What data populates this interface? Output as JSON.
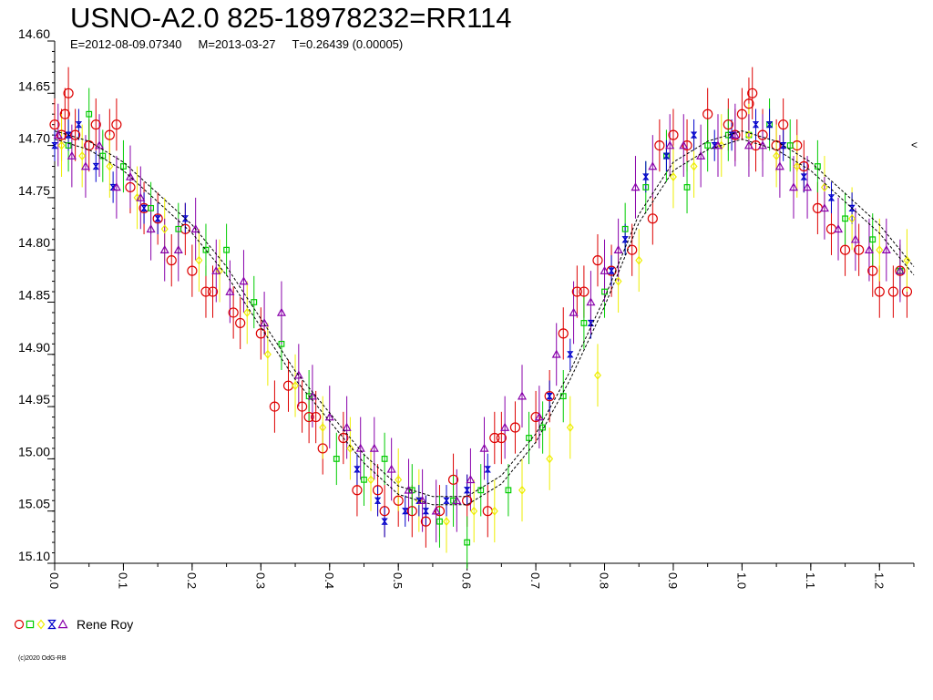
{
  "title": "USNO-A2.0 825-18978232=RR114",
  "subtitle": {
    "epoch": "E=2012-08-09.07340",
    "max": "M=2013-03-27",
    "period": "T=0.26439 (0.00005)"
  },
  "legend": {
    "label": "Rene Roy",
    "symbols": [
      "circle",
      "square",
      "diamond",
      "star",
      "triangle"
    ]
  },
  "credit": "(c)2020 OdG-RB",
  "edge_marker": "<",
  "colors": {
    "circle": "#dd0000",
    "square": "#00cc00",
    "diamond": "#eeee00",
    "star": "#0000cc",
    "triangle": "#8800aa",
    "fit": "#000000"
  },
  "chart_data": {
    "type": "scatter",
    "title": "USNO-A2.0 825-18978232=RR114",
    "xlabel": "",
    "ylabel": "",
    "xlim": [
      0.0,
      1.25
    ],
    "ylim": [
      15.1,
      14.6
    ],
    "y_inverted": true,
    "x_ticks": [
      "0.0",
      "0.1",
      "0.2",
      "0.3",
      "0.4",
      "0.5",
      "0.6",
      "0.7",
      "0.8",
      "0.9",
      "1.0",
      "1.1",
      "1.2"
    ],
    "y_ticks": [
      "14.60",
      "14.65",
      "14.70",
      "14.75",
      "14.80",
      "14.85",
      "14.90",
      "14.95",
      "15.00",
      "15.05",
      "15.10"
    ],
    "grid": false,
    "legend_position": "bottom-left",
    "fit_curve": {
      "x": [
        0.0,
        0.05,
        0.1,
        0.15,
        0.2,
        0.25,
        0.3,
        0.35,
        0.4,
        0.45,
        0.5,
        0.55,
        0.6,
        0.65,
        0.7,
        0.75,
        0.8,
        0.85,
        0.9,
        0.95,
        1.0,
        1.05,
        1.1,
        1.15,
        1.2,
        1.25
      ],
      "y": [
        14.69,
        14.7,
        14.72,
        14.75,
        14.78,
        14.82,
        14.87,
        14.92,
        14.96,
        15.0,
        15.03,
        15.04,
        15.04,
        15.02,
        14.98,
        14.92,
        14.85,
        14.77,
        14.72,
        14.7,
        14.69,
        14.7,
        14.72,
        14.75,
        14.78,
        14.82
      ]
    },
    "series": [
      {
        "name": "Rene Roy",
        "symbol": "circle",
        "x": [
          0.0,
          0.01,
          0.015,
          0.02,
          0.03,
          0.05,
          0.06,
          0.08,
          0.09,
          0.11,
          0.13,
          0.15,
          0.17,
          0.19,
          0.2,
          0.22,
          0.23,
          0.26,
          0.27,
          0.3,
          0.32,
          0.34,
          0.36,
          0.37,
          0.38,
          0.39,
          0.42,
          0.44,
          0.47,
          0.48,
          0.5,
          0.52,
          0.54,
          0.56,
          0.58,
          0.6,
          0.63,
          0.64,
          0.65,
          0.67,
          0.7,
          0.72,
          0.74,
          0.76,
          0.77,
          0.79,
          0.81,
          0.84,
          0.87,
          0.88,
          0.9,
          0.92,
          0.95,
          0.98,
          0.99,
          1.0,
          1.01,
          1.015,
          1.02,
          1.03,
          1.05,
          1.06,
          1.08,
          1.09,
          1.11,
          1.13,
          1.15,
          1.17,
          1.19,
          1.2,
          1.22,
          1.23,
          1.24
        ],
        "y": [
          14.68,
          14.69,
          14.67,
          14.65,
          14.69,
          14.7,
          14.68,
          14.69,
          14.68,
          14.74,
          14.76,
          14.77,
          14.81,
          14.78,
          14.82,
          14.84,
          14.84,
          14.86,
          14.87,
          14.88,
          14.95,
          14.93,
          14.95,
          14.96,
          14.96,
          14.99,
          14.98,
          15.03,
          15.03,
          15.05,
          15.04,
          15.05,
          15.06,
          15.05,
          15.02,
          15.04,
          15.05,
          14.98,
          14.98,
          14.97,
          14.96,
          14.94,
          14.88,
          14.84,
          14.84,
          14.81,
          14.82,
          14.8,
          14.77,
          14.7,
          14.69,
          14.7,
          14.67,
          14.68,
          14.69,
          14.67,
          14.66,
          14.65,
          14.7,
          14.69,
          14.7,
          14.68,
          14.7,
          14.72,
          14.76,
          14.78,
          14.8,
          14.8,
          14.82,
          14.84,
          14.84,
          14.82,
          14.84
        ]
      },
      {
        "name": "Rene Roy",
        "symbol": "square",
        "x": [
          0.02,
          0.05,
          0.07,
          0.1,
          0.14,
          0.18,
          0.22,
          0.25,
          0.29,
          0.33,
          0.37,
          0.41,
          0.45,
          0.48,
          0.52,
          0.56,
          0.58,
          0.6,
          0.62,
          0.66,
          0.69,
          0.71,
          0.74,
          0.77,
          0.8,
          0.83,
          0.86,
          0.89,
          0.92,
          0.95,
          0.98,
          1.01,
          1.04,
          1.07,
          1.11,
          1.15,
          1.19,
          1.23
        ],
        "y": [
          14.7,
          14.67,
          14.71,
          14.72,
          14.76,
          14.78,
          14.8,
          14.8,
          14.85,
          14.89,
          14.94,
          15.0,
          15.02,
          15.0,
          15.03,
          15.06,
          15.04,
          15.08,
          15.03,
          15.03,
          14.98,
          14.97,
          14.94,
          14.87,
          14.84,
          14.78,
          14.74,
          14.71,
          14.74,
          14.7,
          14.69,
          14.69,
          14.68,
          14.7,
          14.72,
          14.77,
          14.79,
          14.82
        ]
      },
      {
        "name": "Rene Roy",
        "symbol": "diamond",
        "x": [
          0.01,
          0.04,
          0.08,
          0.12,
          0.16,
          0.21,
          0.24,
          0.28,
          0.31,
          0.35,
          0.39,
          0.43,
          0.46,
          0.5,
          0.53,
          0.57,
          0.61,
          0.64,
          0.68,
          0.72,
          0.75,
          0.79,
          0.82,
          0.85,
          0.9,
          0.93,
          0.97,
          1.01,
          1.05,
          1.08,
          1.12,
          1.16,
          1.2,
          1.24
        ],
        "y": [
          14.7,
          14.71,
          14.72,
          14.75,
          14.78,
          14.81,
          14.82,
          14.86,
          14.9,
          14.93,
          14.97,
          14.99,
          15.02,
          15.02,
          15.04,
          15.06,
          15.05,
          15.05,
          15.03,
          15.0,
          14.97,
          14.92,
          14.83,
          14.81,
          14.73,
          14.72,
          14.7,
          14.69,
          14.71,
          14.72,
          14.74,
          14.77,
          14.8,
          14.81
        ]
      },
      {
        "name": "Rene Roy",
        "symbol": "star",
        "x": [
          0.0,
          0.02,
          0.035,
          0.06,
          0.085,
          0.13,
          0.15,
          0.19,
          0.44,
          0.47,
          0.48,
          0.51,
          0.53,
          0.54,
          0.57,
          0.6,
          0.63,
          0.72,
          0.75,
          0.78,
          0.81,
          0.83,
          0.86,
          0.89,
          0.93,
          0.96,
          0.985,
          1.02,
          1.04,
          1.06,
          1.09,
          1.13,
          1.16
        ],
        "y": [
          14.7,
          14.69,
          14.68,
          14.72,
          14.74,
          14.76,
          14.77,
          14.77,
          15.01,
          15.04,
          15.06,
          15.05,
          15.04,
          15.05,
          15.04,
          15.03,
          15.01,
          14.94,
          14.9,
          14.87,
          14.82,
          14.79,
          14.73,
          14.71,
          14.69,
          14.7,
          14.69,
          14.68,
          14.68,
          14.7,
          14.73,
          14.75,
          14.76
        ]
      },
      {
        "name": "Rene Roy",
        "symbol": "triangle",
        "x": [
          0.005,
          0.025,
          0.045,
          0.065,
          0.09,
          0.11,
          0.125,
          0.14,
          0.16,
          0.18,
          0.205,
          0.235,
          0.255,
          0.275,
          0.305,
          0.33,
          0.355,
          0.375,
          0.4,
          0.425,
          0.445,
          0.465,
          0.49,
          0.515,
          0.535,
          0.555,
          0.585,
          0.605,
          0.625,
          0.655,
          0.68,
          0.705,
          0.73,
          0.755,
          0.78,
          0.8,
          0.82,
          0.845,
          0.87,
          0.895,
          0.915,
          0.94,
          0.965,
          0.99,
          1.01,
          1.03,
          1.055,
          1.075,
          1.095,
          1.12,
          1.14,
          1.165,
          1.185,
          1.21,
          1.23
        ],
        "y": [
          14.69,
          14.71,
          14.72,
          14.7,
          14.74,
          14.73,
          14.75,
          14.78,
          14.8,
          14.8,
          14.78,
          14.82,
          14.84,
          14.83,
          14.87,
          14.86,
          14.92,
          14.94,
          14.96,
          14.97,
          14.99,
          14.99,
          15.01,
          15.03,
          15.04,
          15.05,
          15.04,
          15.02,
          14.99,
          14.97,
          14.94,
          14.96,
          14.9,
          14.86,
          14.85,
          14.82,
          14.8,
          14.74,
          14.72,
          14.7,
          14.7,
          14.71,
          14.7,
          14.69,
          14.7,
          14.7,
          14.72,
          14.74,
          14.74,
          14.76,
          14.78,
          14.79,
          14.8,
          14.8,
          14.82
        ]
      }
    ]
  }
}
